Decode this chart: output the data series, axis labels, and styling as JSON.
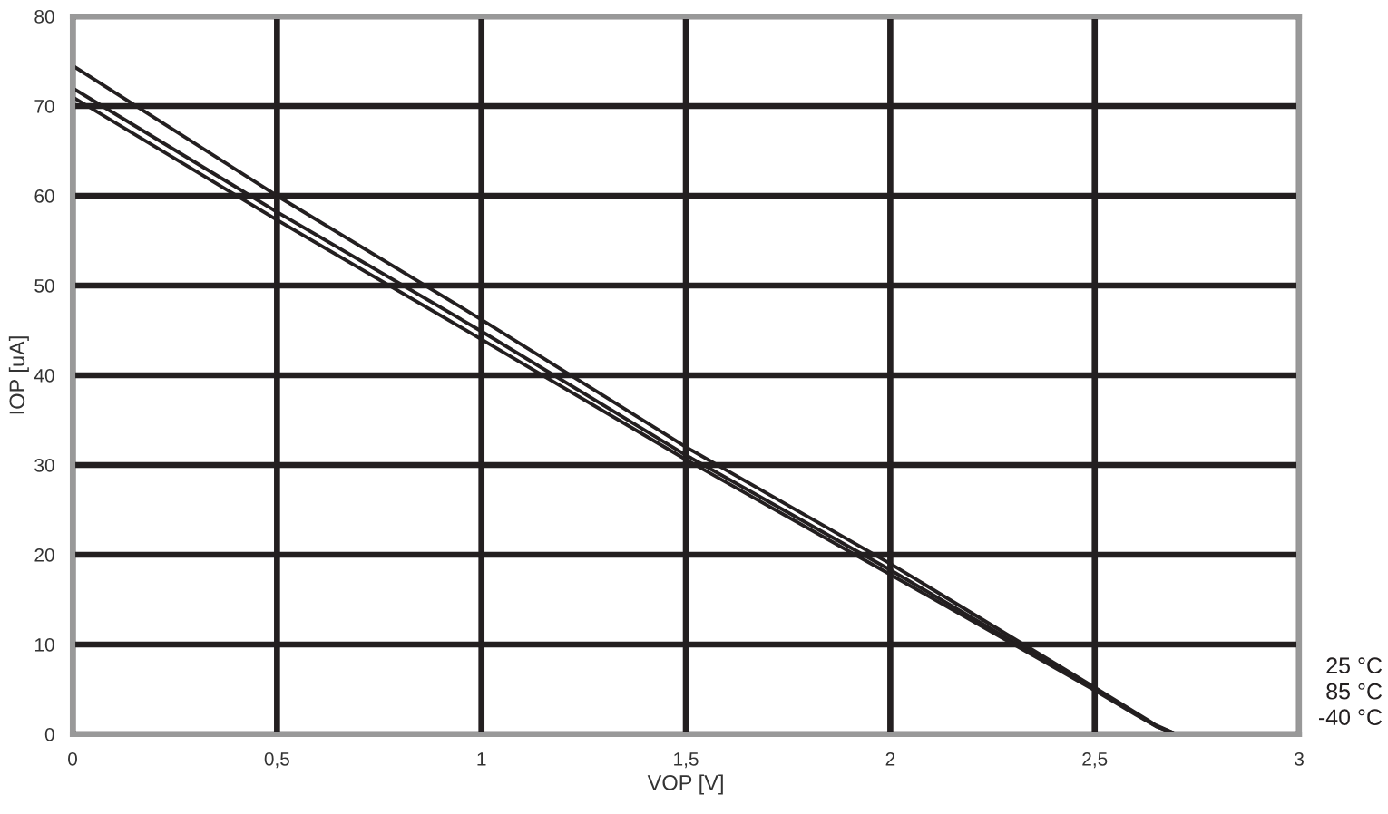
{
  "chart_data": {
    "type": "line",
    "xlabel": "VOP [V]",
    "ylabel": "IOP [uA]",
    "xlim": [
      0,
      3
    ],
    "ylim": [
      0,
      80
    ],
    "xticks": [
      0,
      {
        "value": 0.5,
        "label": "0,5"
      },
      1,
      {
        "value": 1.5,
        "label": "1,5"
      },
      2,
      {
        "value": 2.5,
        "label": "2,5"
      },
      3
    ],
    "yticks": [
      0,
      10,
      20,
      30,
      40,
      50,
      60,
      70,
      80
    ],
    "grid": true,
    "legend": false,
    "marker": "none",
    "line_style": "solid",
    "series": [
      {
        "name": "25 °C",
        "color": "#231f20",
        "x": [
          0,
          0.5,
          1,
          1.5,
          2,
          2.5,
          2.6,
          2.65,
          2.7,
          2.8
        ],
        "values": [
          74.5,
          60.0,
          46.2,
          32.0,
          19.0,
          5.2,
          2.4,
          1.0,
          0,
          0
        ]
      },
      {
        "name": "85 °C",
        "color": "#231f20",
        "x": [
          0,
          0.5,
          1,
          1.5,
          2,
          2.5,
          2.6,
          2.65,
          2.7,
          2.8
        ],
        "values": [
          72.0,
          58.2,
          44.9,
          31.1,
          18.3,
          5.0,
          2.3,
          0.9,
          0,
          0
        ]
      },
      {
        "name": "-40 °C",
        "color": "#231f20",
        "x": [
          0,
          0.5,
          1,
          1.5,
          2,
          2.5,
          2.6,
          2.65,
          2.7,
          2.8
        ],
        "values": [
          71.0,
          57.3,
          44.0,
          30.6,
          17.8,
          4.9,
          2.2,
          0.9,
          0,
          0
        ]
      }
    ]
  }
}
